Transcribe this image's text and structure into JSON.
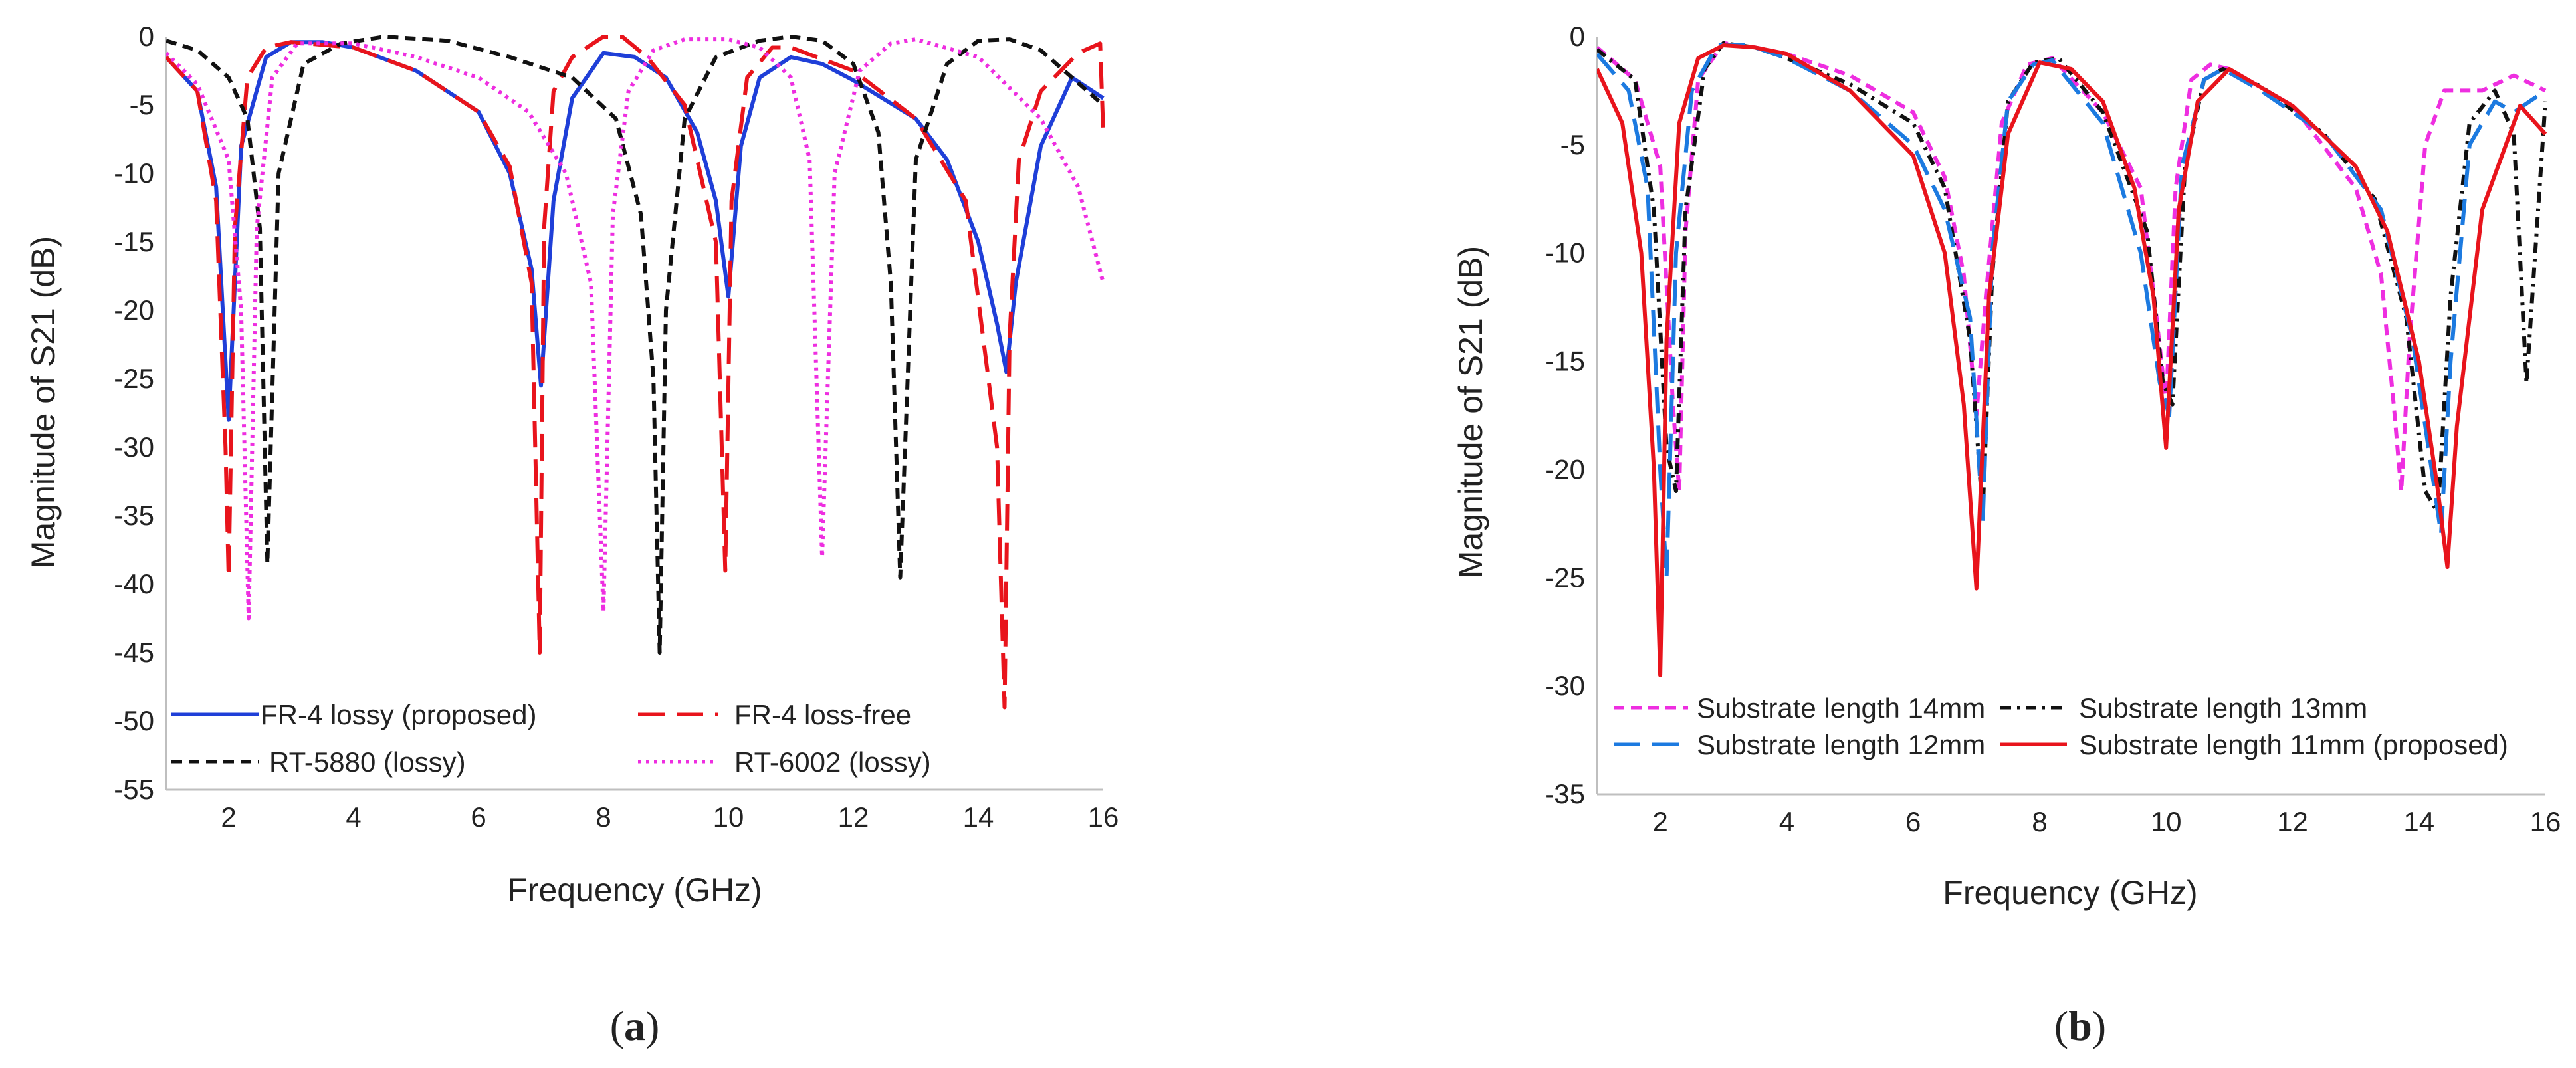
{
  "chart_data": [
    {
      "type": "line",
      "id": "a",
      "caption_open": "(",
      "caption_letter": "a",
      "caption_close": ")",
      "xlabel": "Frequency (GHz)",
      "ylabel": "Magnitude of S21 (dB)",
      "xlim": [
        1,
        16
      ],
      "ylim": [
        -55,
        0
      ],
      "xticks": [
        2,
        4,
        6,
        8,
        10,
        12,
        14,
        16
      ],
      "yticks": [
        0,
        -5,
        -10,
        -15,
        -20,
        -25,
        -30,
        -35,
        -40,
        -45,
        -50,
        -55
      ],
      "grid": false,
      "legend_position": "bottom-left",
      "series": [
        {
          "name": "FR-4 lossy (proposed)",
          "color": "#1f3fd8",
          "dash": "solid",
          "x": [
            1,
            1.5,
            1.8,
            2.0,
            2.2,
            2.6,
            3.0,
            3.5,
            4,
            5,
            6,
            6.5,
            6.85,
            7.0,
            7.2,
            7.5,
            8.0,
            8.5,
            9,
            9.5,
            9.8,
            10.0,
            10.2,
            10.5,
            11,
            11.5,
            12,
            13,
            13.5,
            14,
            14.3,
            14.45,
            14.6,
            15,
            15.5,
            16
          ],
          "values": [
            -1.5,
            -4,
            -11,
            -28,
            -8,
            -1.5,
            -0.4,
            -0.4,
            -0.8,
            -2.5,
            -5.5,
            -10,
            -17,
            -25.5,
            -12,
            -4.5,
            -1.2,
            -1.5,
            -3,
            -7,
            -12,
            -19,
            -8,
            -3,
            -1.5,
            -2,
            -3.2,
            -6,
            -9,
            -15,
            -21,
            -24.5,
            -18,
            -8,
            -3,
            -4.5
          ]
        },
        {
          "name": "FR-4 loss-free",
          "color": "#e8141c",
          "dash": "long-dash",
          "x": [
            1,
            1.5,
            1.8,
            1.95,
            2.0,
            2.1,
            2.3,
            2.6,
            3.0,
            4,
            5,
            6,
            6.5,
            6.85,
            6.98,
            7.05,
            7.2,
            7.5,
            8.0,
            8.3,
            8.7,
            9.3,
            9.8,
            9.95,
            10.05,
            10.3,
            10.7,
            11,
            12,
            13,
            13.8,
            14.3,
            14.42,
            14.5,
            14.65,
            15,
            15.6,
            15.95,
            16
          ],
          "values": [
            -1.5,
            -4,
            -12,
            -30,
            -39.5,
            -14,
            -3,
            -0.8,
            -0.4,
            -0.8,
            -2.5,
            -5.5,
            -9.5,
            -18,
            -45,
            -14,
            -4,
            -1.5,
            0,
            0,
            -1.5,
            -5,
            -15,
            -39,
            -12,
            -3,
            -0.8,
            -0.8,
            -2.5,
            -6,
            -12,
            -30,
            -49,
            -22,
            -9,
            -4,
            -1.2,
            -0.5,
            -7
          ]
        },
        {
          "name": "RT-5880 (lossy)",
          "color": "#111111",
          "dash": "dashed",
          "x": [
            1,
            1.5,
            2.0,
            2.3,
            2.5,
            2.62,
            2.8,
            3.2,
            3.8,
            4.5,
            5.5,
            6.5,
            7.5,
            8.2,
            8.6,
            8.8,
            8.9,
            9.0,
            9.3,
            9.8,
            10.5,
            11,
            11.5,
            12,
            12.4,
            12.6,
            12.75,
            13.0,
            13.5,
            14,
            14.5,
            15,
            15.5,
            16
          ],
          "values": [
            -0.3,
            -1,
            -3,
            -6,
            -14,
            -38.5,
            -10,
            -2,
            -0.5,
            0,
            -0.3,
            -1.5,
            -3,
            -6,
            -13,
            -25,
            -45,
            -20,
            -6,
            -1.5,
            -0.3,
            0,
            -0.3,
            -2,
            -7,
            -18,
            -39.5,
            -9,
            -2,
            -0.3,
            -0.2,
            -1,
            -3,
            -5
          ]
        },
        {
          "name": "RT-6002 (lossy)",
          "color": "#ee2ee0",
          "dash": "dotted",
          "x": [
            1,
            1.5,
            2.0,
            2.2,
            2.32,
            2.45,
            2.7,
            3.1,
            4,
            5,
            6,
            6.8,
            7.4,
            7.8,
            8.0,
            8.15,
            8.4,
            8.8,
            9.3,
            10,
            10.5,
            11,
            11.3,
            11.5,
            11.7,
            12.1,
            12.6,
            13,
            14,
            15,
            15.6,
            16
          ],
          "values": [
            -1.2,
            -3.5,
            -9,
            -20,
            -42.5,
            -14,
            -3,
            -0.5,
            -0.5,
            -1.5,
            -3,
            -5.5,
            -10,
            -18,
            -42,
            -13,
            -4,
            -1,
            -0.2,
            -0.2,
            -0.8,
            -3,
            -9,
            -38,
            -10,
            -2.5,
            -0.5,
            -0.2,
            -1.5,
            -6,
            -11,
            -18
          ]
        }
      ]
    },
    {
      "type": "line",
      "id": "b",
      "caption_open": "(",
      "caption_letter": "b",
      "caption_close": ")",
      "xlabel": "Frequency (GHz)",
      "ylabel": "Magnitude of S21 (dB)",
      "xlim": [
        1,
        16
      ],
      "ylim": [
        -35,
        0
      ],
      "xticks": [
        2,
        4,
        6,
        8,
        10,
        12,
        14,
        16
      ],
      "yticks": [
        0,
        -5,
        -10,
        -15,
        -20,
        -25,
        -30,
        -35
      ],
      "grid": false,
      "legend_position": "bottom-left",
      "series": [
        {
          "name": "Substrate length 14mm",
          "color": "#ee2ee0",
          "dash": "dashed",
          "x": [
            1,
            1.6,
            2.0,
            2.2,
            2.3,
            2.4,
            2.6,
            3.0,
            3.5,
            4,
            5,
            6,
            6.5,
            6.8,
            7.0,
            7.15,
            7.4,
            7.8,
            8.2,
            9,
            9.6,
            9.85,
            10.0,
            10.15,
            10.4,
            10.7,
            11,
            12,
            13,
            13.4,
            13.6,
            13.72,
            13.85,
            14.1,
            14.4,
            15.0,
            15.5,
            16
          ],
          "values": [
            -0.5,
            -2,
            -6,
            -17,
            -21,
            -9,
            -2,
            -0.3,
            -0.5,
            -0.8,
            -1.8,
            -3.5,
            -6.5,
            -11,
            -17.5,
            -12,
            -4,
            -1.3,
            -1,
            -3.5,
            -7,
            -13,
            -17,
            -7,
            -2,
            -1.3,
            -1.5,
            -3.2,
            -7,
            -11,
            -17,
            -21,
            -14,
            -5,
            -2.5,
            -2.5,
            -1.8,
            -2.5
          ]
        },
        {
          "name": "Substrate length 13mm",
          "color": "#111111",
          "dash": "dash-dot",
          "x": [
            1,
            1.6,
            1.9,
            2.1,
            2.25,
            2.4,
            2.7,
            3.0,
            3.5,
            4,
            5,
            6,
            6.5,
            6.9,
            7.1,
            7.25,
            7.5,
            7.9,
            8.3,
            9,
            9.7,
            9.95,
            10.1,
            10.3,
            10.6,
            10.9,
            11.5,
            12.5,
            13.3,
            13.8,
            14.1,
            14.3,
            14.5,
            14.8,
            15.2,
            15.5,
            15.7,
            16
          ],
          "values": [
            -0.6,
            -2,
            -8,
            -19,
            -21,
            -8,
            -1.5,
            -0.3,
            -0.5,
            -1,
            -2.2,
            -4,
            -7,
            -14,
            -22,
            -11,
            -3,
            -1.2,
            -1,
            -3.5,
            -9,
            -16,
            -17,
            -6,
            -2,
            -1.5,
            -2.3,
            -4.5,
            -7.5,
            -13,
            -21,
            -22,
            -12,
            -4,
            -2.5,
            -4.5,
            -16,
            -3
          ]
        },
        {
          "name": "Substrate length 12mm",
          "color": "#1c7ae0",
          "dash": "long-dash",
          "x": [
            1,
            1.5,
            1.8,
            2.0,
            2.1,
            2.25,
            2.5,
            2.9,
            3.4,
            4,
            5,
            6,
            6.5,
            6.9,
            7.1,
            7.25,
            7.5,
            7.9,
            8.2,
            9,
            9.6,
            9.9,
            10.05,
            10.25,
            10.6,
            10.9,
            11.5,
            12.5,
            13.4,
            13.9,
            14.2,
            14.35,
            14.5,
            14.8,
            15.2,
            15.5,
            16
          ],
          "values": [
            -0.8,
            -2.5,
            -7,
            -20,
            -25,
            -10,
            -2.5,
            -0.4,
            -0.4,
            -1,
            -2.5,
            -5,
            -8,
            -13,
            -22.5,
            -10,
            -3,
            -1.3,
            -1.1,
            -4,
            -10,
            -16,
            -17.5,
            -6,
            -2,
            -1.5,
            -2.5,
            -4.5,
            -8,
            -14,
            -20,
            -23,
            -15,
            -5,
            -3,
            -3.5,
            -2.5
          ]
        },
        {
          "name": "Substrate length 11mm (proposed)",
          "color": "#e8141c",
          "dash": "solid",
          "x": [
            1,
            1.4,
            1.7,
            1.9,
            2.0,
            2.1,
            2.3,
            2.6,
            3.0,
            3.5,
            4,
            5,
            6,
            6.5,
            6.8,
            7.0,
            7.2,
            7.5,
            8.0,
            8.5,
            9,
            9.5,
            9.8,
            10.0,
            10.2,
            10.5,
            11,
            12,
            13,
            13.5,
            14,
            14.3,
            14.45,
            14.6,
            15,
            15.6,
            16
          ],
          "values": [
            -1.5,
            -4,
            -10,
            -20,
            -29.5,
            -14,
            -4,
            -1,
            -0.4,
            -0.5,
            -0.8,
            -2.5,
            -5.5,
            -10,
            -17,
            -25.5,
            -12,
            -4.5,
            -1.2,
            -1.5,
            -3,
            -7,
            -12,
            -19,
            -8,
            -3,
            -1.5,
            -3.2,
            -6,
            -9,
            -15,
            -21,
            -24.5,
            -18,
            -8,
            -3.2,
            -4.5
          ]
        }
      ]
    }
  ]
}
